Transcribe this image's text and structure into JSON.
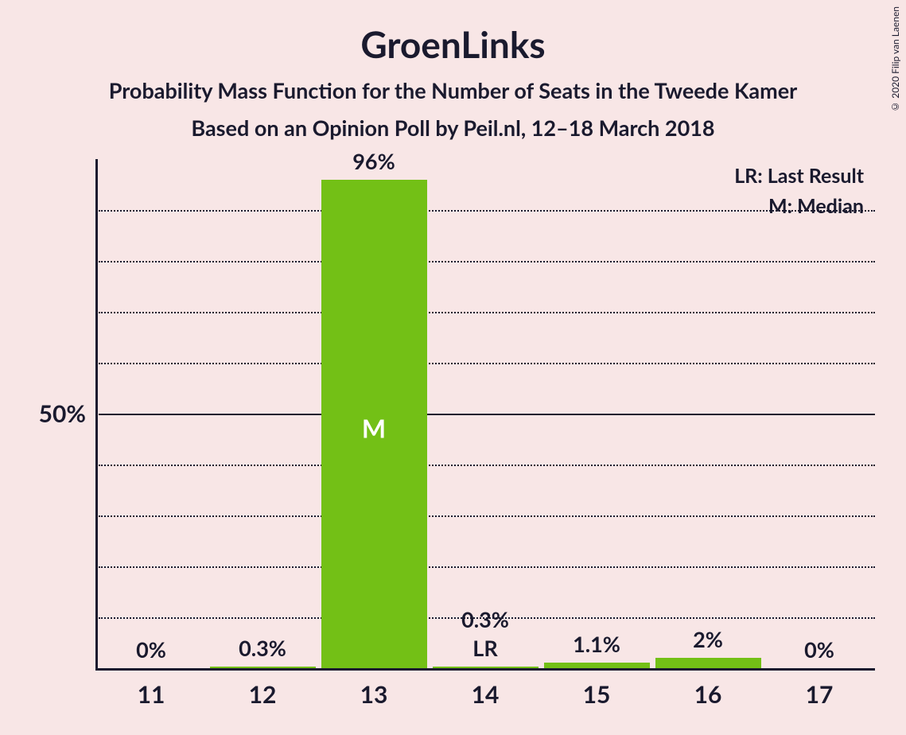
{
  "title": "GroenLinks",
  "subtitle1": "Probability Mass Function for the Number of Seats in the Tweede Kamer",
  "subtitle2": "Based on an Opinion Poll by Peil.nl, 12–18 March 2018",
  "copyright": "© 2020 Filip van Laenen",
  "legend": {
    "lr": "LR: Last Result",
    "m": "M: Median"
  },
  "chart": {
    "type": "bar",
    "background_color": "#f8e6e6",
    "bar_color": "#73c016",
    "text_color": "#1a1a2e",
    "axis_color": "#1a1a2e",
    "grid_color": "#1a1a2e",
    "ymax": 100,
    "y_major": {
      "value": 50,
      "label": "50%"
    },
    "y_grid_step": 10,
    "bar_width_ratio": 0.95,
    "categories": [
      "11",
      "12",
      "13",
      "14",
      "15",
      "16",
      "17"
    ],
    "values": [
      0,
      0.3,
      96,
      0.3,
      1.1,
      2,
      0
    ],
    "value_labels": [
      "0%",
      "0.3%",
      "96%",
      "0.3%",
      "1.1%",
      "2%",
      "0%"
    ],
    "median_index": 2,
    "median_marker": "M",
    "last_result_index": 3,
    "last_result_marker": "LR"
  }
}
